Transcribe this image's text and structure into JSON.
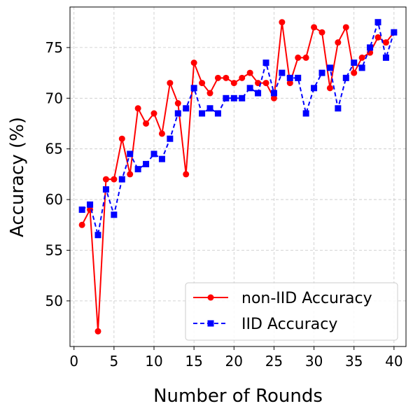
{
  "chart_data": {
    "type": "line",
    "xlabel": "Number of Rounds",
    "ylabel": "Accuracy (%)",
    "xlim": [
      -0.5,
      41.5
    ],
    "ylim": [
      45.5,
      79
    ],
    "xticks": [
      0,
      5,
      10,
      15,
      20,
      25,
      30,
      35,
      40
    ],
    "yticks": [
      50,
      55,
      60,
      65,
      70,
      75
    ],
    "grid": true,
    "legend_position": "lower-right",
    "x": [
      1,
      2,
      3,
      4,
      5,
      6,
      7,
      8,
      9,
      10,
      11,
      12,
      13,
      14,
      15,
      16,
      17,
      18,
      19,
      20,
      21,
      22,
      23,
      24,
      25,
      26,
      27,
      28,
      29,
      30,
      31,
      32,
      33,
      34,
      35,
      36,
      37,
      38,
      39,
      40
    ],
    "series": [
      {
        "name": "non-IID Accuracy",
        "color": "#ff0000",
        "marker": "circle",
        "line_style": "solid",
        "values": [
          57.5,
          59,
          47,
          62,
          62,
          66,
          62.5,
          69,
          67.5,
          68.5,
          66.5,
          71.5,
          69.5,
          62.5,
          73.5,
          71.5,
          70.5,
          72,
          72,
          71.5,
          72,
          72.5,
          71.5,
          71.5,
          70,
          77.5,
          71.5,
          74,
          74,
          77,
          76.5,
          71,
          75.5,
          77,
          72.5,
          74,
          74.5,
          76,
          75.5,
          76.5
        ]
      },
      {
        "name": "IID Accuracy",
        "color": "#0000ff",
        "marker": "square",
        "line_style": "dashed",
        "values": [
          59,
          59.5,
          56.5,
          61,
          58.5,
          62,
          64.5,
          63,
          63.5,
          64.5,
          64,
          66,
          68.5,
          69,
          71,
          68.5,
          69,
          68.5,
          70,
          70,
          70,
          71,
          70.5,
          73.5,
          70.5,
          72.5,
          72,
          72,
          68.5,
          71,
          72.5,
          73,
          69,
          72,
          73.5,
          73,
          75,
          77.5,
          74,
          76.5
        ]
      }
    ]
  }
}
